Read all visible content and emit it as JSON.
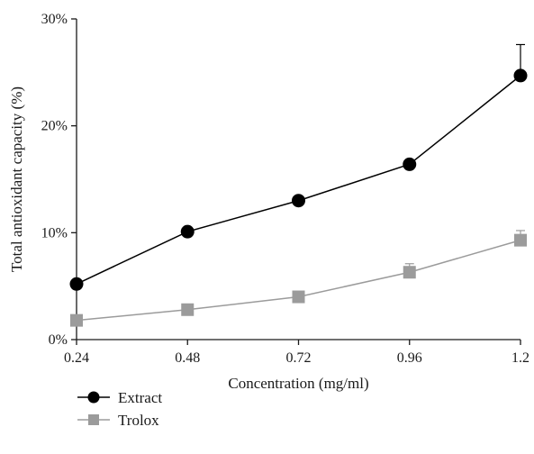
{
  "chart_data": {
    "type": "line",
    "title": "",
    "xlabel": "Concentration (mg/ml)",
    "ylabel": "Total antioxidant capacity (%)",
    "x": [
      0.24,
      0.48,
      0.72,
      0.96,
      1.2
    ],
    "x_tick_labels": [
      "0.24",
      "0.48",
      "0.72",
      "0.96",
      "1.2"
    ],
    "y_ticks": [
      0,
      10,
      20,
      30
    ],
    "y_tick_labels": [
      "0%",
      "10%",
      "20%",
      "30%"
    ],
    "ylim": [
      0,
      30
    ],
    "grid": false,
    "legend_position": "bottom-left",
    "series": [
      {
        "name": "Extract",
        "values": [
          5.2,
          10.1,
          13.0,
          16.4,
          24.7
        ],
        "error": [
          0,
          0,
          0,
          0,
          2.9
        ],
        "color": "#000000",
        "marker": "circle"
      },
      {
        "name": "Trolox",
        "values": [
          1.8,
          2.8,
          4.0,
          6.3,
          9.3
        ],
        "error": [
          0,
          0,
          0,
          0.8,
          0.9
        ],
        "color": "#9b9b9b",
        "marker": "square"
      }
    ]
  }
}
